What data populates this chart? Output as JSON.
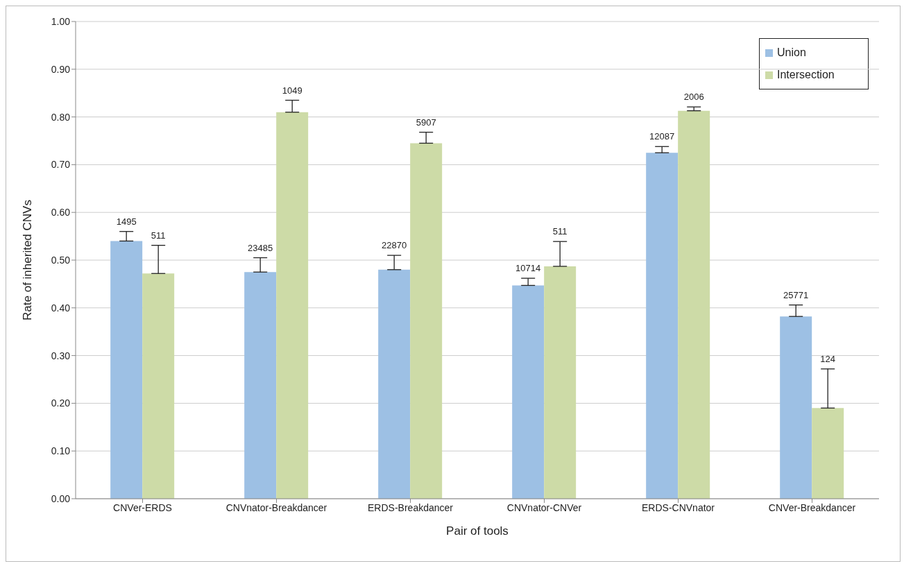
{
  "chart_data": {
    "type": "bar",
    "xlabel": "Pair of tools",
    "ylabel": "Rate of inherited CNVs",
    "categories": [
      "CNVer-ERDS",
      "CNVnator-Breakdancer",
      "ERDS-Breakdancer",
      "CNVnator-CNVer",
      "ERDS-CNVnator",
      "CNVer-Breakdancer"
    ],
    "series": [
      {
        "name": "Union",
        "color": "#9dc0e4",
        "values": [
          0.54,
          0.475,
          0.48,
          0.447,
          0.725,
          0.382
        ],
        "errors": [
          [
            0.54,
            0.56
          ],
          [
            0.475,
            0.505
          ],
          [
            0.48,
            0.51
          ],
          [
            0.447,
            0.462
          ],
          [
            0.725,
            0.738
          ],
          [
            0.382,
            0.406
          ]
        ]
      },
      {
        "name": "Intersection",
        "color": "#cddba7",
        "values": [
          0.472,
          0.81,
          0.745,
          0.487,
          0.813,
          0.19
        ],
        "errors": [
          [
            0.472,
            0.531
          ],
          [
            0.81,
            0.835
          ],
          [
            0.745,
            0.768
          ],
          [
            0.487,
            0.539
          ],
          [
            0.813,
            0.821
          ],
          [
            0.19,
            0.272
          ]
        ]
      }
    ],
    "annotations": [
      "1495",
      "511",
      "23485",
      "1049",
      "22870",
      "5907",
      "10714",
      "511",
      "12087",
      "2006",
      "25771",
      "124"
    ],
    "ylim": [
      0,
      1
    ],
    "yticks": [
      {
        "value": 0,
        "label": "0.00"
      },
      {
        "value": 0.1,
        "label": "0.10"
      },
      {
        "value": 0.2,
        "label": "0.20"
      },
      {
        "value": 0.3,
        "label": "0.30"
      },
      {
        "value": 0.4,
        "label": "0.40"
      },
      {
        "value": 0.5,
        "label": "0.50"
      },
      {
        "value": 0.6,
        "label": "0.60"
      },
      {
        "value": 0.7,
        "label": "0.70"
      },
      {
        "value": 0.8,
        "label": "0.80"
      },
      {
        "value": 0.9,
        "label": "0.90"
      },
      {
        "value": 1,
        "label": "1.00"
      }
    ],
    "grid": "y",
    "legend": "top right"
  }
}
